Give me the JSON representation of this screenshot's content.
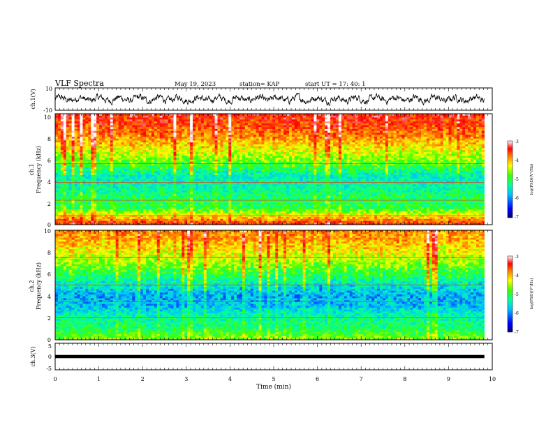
{
  "header": {
    "title": "VLF Spectra",
    "date": "May 19, 2023",
    "station": "station= KAP",
    "start": "start  UT  =   17: 40: 1"
  },
  "chart_data": [
    {
      "type": "line",
      "panel": "ch1-waveform",
      "ylabel": "ch.1(V)",
      "ylim": [
        -10,
        10
      ],
      "yticks": [
        "10",
        "-10"
      ],
      "xlim": [
        0,
        10
      ],
      "x_end_data": 9.82,
      "series": [
        {
          "color": "#000000",
          "amplitude_range": [
            -7,
            7
          ]
        }
      ]
    },
    {
      "type": "heatmap",
      "panel": "ch1-spectrogram",
      "ylabel_top": "ch.1",
      "ylabel": "Frequency (kHz)",
      "ylim": [
        0,
        10
      ],
      "yticks": [
        "0",
        "2",
        "4",
        "6",
        "8",
        "10"
      ],
      "xlim": [
        0,
        10
      ],
      "x_end_data": 9.82,
      "colorbar": {
        "label": "log(PSD)(V²/Hz)",
        "range": [
          -7,
          -3
        ],
        "ticks": [
          "-3",
          "-4",
          "-5",
          "-6",
          "-7"
        ],
        "colors": [
          "#000080",
          "#0000ff",
          "#00c0ff",
          "#00ffa0",
          "#40ff00",
          "#ffff00",
          "#ff8000",
          "#ff0000",
          "#ffffff"
        ]
      },
      "intensity_profile": [
        {
          "f": 0.0,
          "v": -3.6
        },
        {
          "f": 0.3,
          "v": -3.9
        },
        {
          "f": 0.6,
          "v": -4.2
        },
        {
          "f": 1.0,
          "v": -4.6
        },
        {
          "f": 1.5,
          "v": -5.2
        },
        {
          "f": 2.5,
          "v": -5.3
        },
        {
          "f": 3.5,
          "v": -5.6
        },
        {
          "f": 4.5,
          "v": -5.6
        },
        {
          "f": 5.5,
          "v": -5.0
        },
        {
          "f": 6.5,
          "v": -4.6
        },
        {
          "f": 8.0,
          "v": -4.0
        },
        {
          "f": 10.0,
          "v": -3.5
        }
      ],
      "lines_khz": [
        0.8,
        2.2,
        3.8,
        5.5
      ]
    },
    {
      "type": "heatmap",
      "panel": "ch2-spectrogram",
      "ylabel_top": "ch.2",
      "ylabel": "Frequency (kHz)",
      "ylim": [
        0,
        10
      ],
      "yticks": [
        "0",
        "2",
        "4",
        "6",
        "8",
        "10"
      ],
      "xlim": [
        0,
        10
      ],
      "x_end_data": 9.82,
      "colorbar": {
        "label": "log(PSD)(V²/Hz)",
        "range": [
          -7,
          -3
        ],
        "ticks": [
          "-3",
          "-4",
          "-5",
          "-6",
          "-7"
        ],
        "colors": [
          "#000080",
          "#0000ff",
          "#00c0ff",
          "#00ffa0",
          "#40ff00",
          "#ffff00",
          "#ff8000",
          "#ff0000",
          "#ffffff"
        ]
      },
      "intensity_profile": [
        {
          "f": 0.0,
          "v": -4.8
        },
        {
          "f": 1.0,
          "v": -5.3
        },
        {
          "f": 2.0,
          "v": -5.5
        },
        {
          "f": 3.0,
          "v": -5.9
        },
        {
          "f": 4.0,
          "v": -6.0
        },
        {
          "f": 5.0,
          "v": -5.7
        },
        {
          "f": 6.0,
          "v": -5.2
        },
        {
          "f": 7.0,
          "v": -4.8
        },
        {
          "f": 8.0,
          "v": -4.5
        },
        {
          "f": 9.0,
          "v": -4.2
        },
        {
          "f": 10.0,
          "v": -4.0
        }
      ],
      "lines_khz": [
        2.0,
        3.5,
        5.0,
        7.5,
        9.2
      ]
    },
    {
      "type": "line",
      "panel": "ch3-waveform",
      "ylabel": "ch.3(V)",
      "ylim": [
        -5,
        5
      ],
      "yticks": [
        "5",
        "0",
        "-5"
      ],
      "xlim": [
        0,
        10
      ],
      "x_end_data": 9.82,
      "xlabel": "Time (min)",
      "xticks": [
        "0",
        "1",
        "2",
        "3",
        "4",
        "5",
        "6",
        "7",
        "8",
        "9",
        "10"
      ],
      "series": [
        {
          "color": "#000000",
          "level_range": [
            -0.6,
            0.6
          ]
        }
      ]
    }
  ]
}
